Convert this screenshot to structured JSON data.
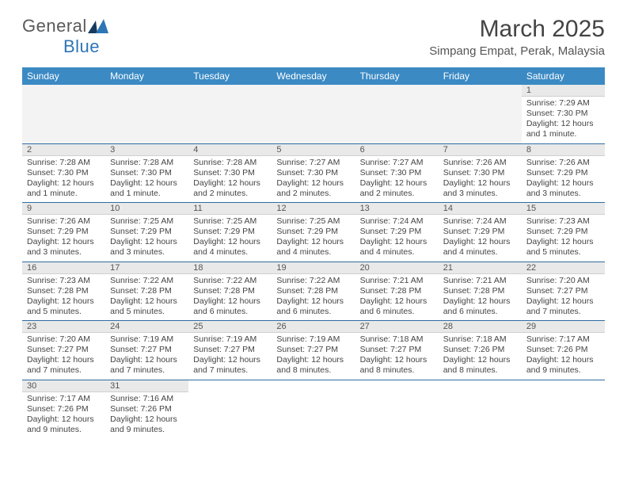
{
  "logo": {
    "word1": "General",
    "word2": "Blue"
  },
  "title": "March 2025",
  "location": "Simpang Empat, Perak, Malaysia",
  "header_bg": "#3b8ac4",
  "divider_color": "#2e6da4",
  "daynum_bg": "#e9e9e9",
  "weekdays": [
    "Sunday",
    "Monday",
    "Tuesday",
    "Wednesday",
    "Thursday",
    "Friday",
    "Saturday"
  ],
  "weeks": [
    [
      null,
      null,
      null,
      null,
      null,
      null,
      {
        "n": "1",
        "sr": "7:29 AM",
        "ss": "7:30 PM",
        "dl": "12 hours and 1 minute."
      }
    ],
    [
      {
        "n": "2",
        "sr": "7:28 AM",
        "ss": "7:30 PM",
        "dl": "12 hours and 1 minute."
      },
      {
        "n": "3",
        "sr": "7:28 AM",
        "ss": "7:30 PM",
        "dl": "12 hours and 1 minute."
      },
      {
        "n": "4",
        "sr": "7:28 AM",
        "ss": "7:30 PM",
        "dl": "12 hours and 2 minutes."
      },
      {
        "n": "5",
        "sr": "7:27 AM",
        "ss": "7:30 PM",
        "dl": "12 hours and 2 minutes."
      },
      {
        "n": "6",
        "sr": "7:27 AM",
        "ss": "7:30 PM",
        "dl": "12 hours and 2 minutes."
      },
      {
        "n": "7",
        "sr": "7:26 AM",
        "ss": "7:30 PM",
        "dl": "12 hours and 3 minutes."
      },
      {
        "n": "8",
        "sr": "7:26 AM",
        "ss": "7:29 PM",
        "dl": "12 hours and 3 minutes."
      }
    ],
    [
      {
        "n": "9",
        "sr": "7:26 AM",
        "ss": "7:29 PM",
        "dl": "12 hours and 3 minutes."
      },
      {
        "n": "10",
        "sr": "7:25 AM",
        "ss": "7:29 PM",
        "dl": "12 hours and 3 minutes."
      },
      {
        "n": "11",
        "sr": "7:25 AM",
        "ss": "7:29 PM",
        "dl": "12 hours and 4 minutes."
      },
      {
        "n": "12",
        "sr": "7:25 AM",
        "ss": "7:29 PM",
        "dl": "12 hours and 4 minutes."
      },
      {
        "n": "13",
        "sr": "7:24 AM",
        "ss": "7:29 PM",
        "dl": "12 hours and 4 minutes."
      },
      {
        "n": "14",
        "sr": "7:24 AM",
        "ss": "7:29 PM",
        "dl": "12 hours and 4 minutes."
      },
      {
        "n": "15",
        "sr": "7:23 AM",
        "ss": "7:29 PM",
        "dl": "12 hours and 5 minutes."
      }
    ],
    [
      {
        "n": "16",
        "sr": "7:23 AM",
        "ss": "7:28 PM",
        "dl": "12 hours and 5 minutes."
      },
      {
        "n": "17",
        "sr": "7:22 AM",
        "ss": "7:28 PM",
        "dl": "12 hours and 5 minutes."
      },
      {
        "n": "18",
        "sr": "7:22 AM",
        "ss": "7:28 PM",
        "dl": "12 hours and 6 minutes."
      },
      {
        "n": "19",
        "sr": "7:22 AM",
        "ss": "7:28 PM",
        "dl": "12 hours and 6 minutes."
      },
      {
        "n": "20",
        "sr": "7:21 AM",
        "ss": "7:28 PM",
        "dl": "12 hours and 6 minutes."
      },
      {
        "n": "21",
        "sr": "7:21 AM",
        "ss": "7:28 PM",
        "dl": "12 hours and 6 minutes."
      },
      {
        "n": "22",
        "sr": "7:20 AM",
        "ss": "7:27 PM",
        "dl": "12 hours and 7 minutes."
      }
    ],
    [
      {
        "n": "23",
        "sr": "7:20 AM",
        "ss": "7:27 PM",
        "dl": "12 hours and 7 minutes."
      },
      {
        "n": "24",
        "sr": "7:19 AM",
        "ss": "7:27 PM",
        "dl": "12 hours and 7 minutes."
      },
      {
        "n": "25",
        "sr": "7:19 AM",
        "ss": "7:27 PM",
        "dl": "12 hours and 7 minutes."
      },
      {
        "n": "26",
        "sr": "7:19 AM",
        "ss": "7:27 PM",
        "dl": "12 hours and 8 minutes."
      },
      {
        "n": "27",
        "sr": "7:18 AM",
        "ss": "7:27 PM",
        "dl": "12 hours and 8 minutes."
      },
      {
        "n": "28",
        "sr": "7:18 AM",
        "ss": "7:26 PM",
        "dl": "12 hours and 8 minutes."
      },
      {
        "n": "29",
        "sr": "7:17 AM",
        "ss": "7:26 PM",
        "dl": "12 hours and 9 minutes."
      }
    ],
    [
      {
        "n": "30",
        "sr": "7:17 AM",
        "ss": "7:26 PM",
        "dl": "12 hours and 9 minutes."
      },
      {
        "n": "31",
        "sr": "7:16 AM",
        "ss": "7:26 PM",
        "dl": "12 hours and 9 minutes."
      },
      null,
      null,
      null,
      null,
      null
    ]
  ],
  "labels": {
    "sunrise": "Sunrise: ",
    "sunset": "Sunset: ",
    "daylight": "Daylight: "
  }
}
